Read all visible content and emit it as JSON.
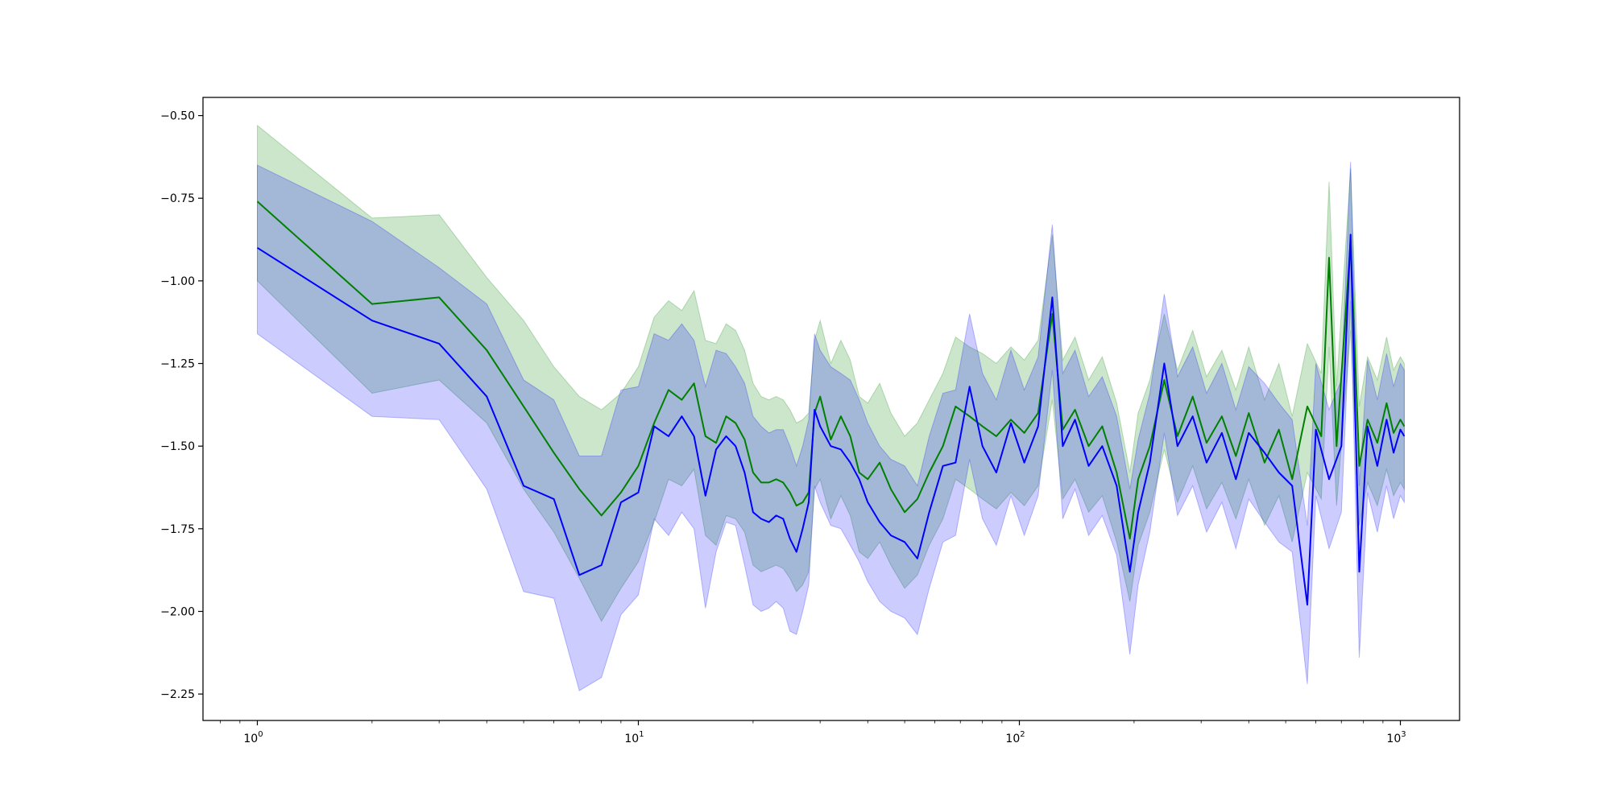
{
  "chart_data": {
    "type": "line",
    "title": "",
    "xlabel": "",
    "ylabel": "",
    "xscale": "log",
    "xlim": [
      0.72,
      1430
    ],
    "ylim": [
      -2.33,
      -0.445
    ],
    "grid": false,
    "x_ticks": [
      {
        "value": 1,
        "base": "10",
        "exp": "0"
      },
      {
        "value": 10,
        "base": "10",
        "exp": "1"
      },
      {
        "value": 100,
        "base": "10",
        "exp": "2"
      },
      {
        "value": 1000,
        "base": "10",
        "exp": "3"
      }
    ],
    "y_ticks": [
      {
        "value": -0.5,
        "label": "−0.50"
      },
      {
        "value": -0.75,
        "label": "−0.75"
      },
      {
        "value": -1.0,
        "label": "−1.00"
      },
      {
        "value": -1.25,
        "label": "−1.25"
      },
      {
        "value": -1.5,
        "label": "−1.50"
      },
      {
        "value": -1.75,
        "label": "−1.75"
      },
      {
        "value": -2.0,
        "label": "−2.00"
      },
      {
        "value": -2.25,
        "label": "−2.25"
      }
    ],
    "series": [
      {
        "color": "#008000",
        "band_color": "#008000",
        "x": [
          1,
          2,
          3,
          4,
          5,
          6,
          7,
          8,
          9,
          10,
          11,
          12,
          13,
          14,
          15,
          16,
          17,
          18,
          19,
          20,
          21,
          22,
          23,
          24,
          25,
          26,
          27,
          28,
          29,
          30,
          32,
          34,
          36,
          38,
          40,
          43,
          46,
          50,
          54,
          58,
          63,
          68,
          74,
          80,
          87,
          95,
          103,
          112,
          122,
          130,
          140,
          152,
          165,
          180,
          195,
          205,
          220,
          240,
          260,
          285,
          310,
          340,
          370,
          400,
          440,
          480,
          520,
          570,
          620,
          650,
          680,
          740,
          780,
          820,
          870,
          920,
          960,
          1000,
          1024
        ],
        "y": [
          -0.76,
          -1.07,
          -1.05,
          -1.21,
          -1.38,
          -1.52,
          -1.63,
          -1.71,
          -1.64,
          -1.56,
          -1.43,
          -1.33,
          -1.36,
          -1.31,
          -1.47,
          -1.49,
          -1.41,
          -1.43,
          -1.48,
          -1.58,
          -1.61,
          -1.61,
          -1.6,
          -1.61,
          -1.64,
          -1.68,
          -1.67,
          -1.64,
          -1.4,
          -1.35,
          -1.48,
          -1.41,
          -1.47,
          -1.58,
          -1.6,
          -1.55,
          -1.63,
          -1.7,
          -1.66,
          -1.58,
          -1.5,
          -1.38,
          -1.41,
          -1.44,
          -1.47,
          -1.42,
          -1.46,
          -1.4,
          -1.1,
          -1.45,
          -1.39,
          -1.5,
          -1.44,
          -1.58,
          -1.78,
          -1.6,
          -1.5,
          -1.3,
          -1.47,
          -1.35,
          -1.49,
          -1.41,
          -1.53,
          -1.4,
          -1.55,
          -1.45,
          -1.6,
          -1.38,
          -1.47,
          -0.93,
          -1.5,
          -0.88,
          -1.56,
          -1.42,
          -1.49,
          -1.37,
          -1.46,
          -1.42,
          -1.44
        ],
        "lower": [
          -1.0,
          -1.34,
          -1.3,
          -1.43,
          -1.63,
          -1.76,
          -1.9,
          -2.03,
          -1.93,
          -1.85,
          -1.73,
          -1.6,
          -1.62,
          -1.57,
          -1.77,
          -1.8,
          -1.71,
          -1.72,
          -1.76,
          -1.86,
          -1.88,
          -1.87,
          -1.86,
          -1.87,
          -1.9,
          -1.94,
          -1.92,
          -1.88,
          -1.63,
          -1.6,
          -1.72,
          -1.65,
          -1.71,
          -1.82,
          -1.84,
          -1.79,
          -1.86,
          -1.93,
          -1.89,
          -1.8,
          -1.72,
          -1.6,
          -1.63,
          -1.66,
          -1.69,
          -1.64,
          -1.68,
          -1.62,
          -1.36,
          -1.66,
          -1.6,
          -1.7,
          -1.65,
          -1.79,
          -1.97,
          -1.8,
          -1.7,
          -1.51,
          -1.67,
          -1.56,
          -1.69,
          -1.61,
          -1.72,
          -1.6,
          -1.74,
          -1.65,
          -1.79,
          -1.58,
          -1.66,
          -1.2,
          -1.68,
          -1.15,
          -1.74,
          -1.61,
          -1.68,
          -1.57,
          -1.65,
          -1.61,
          -1.63
        ],
        "upper": [
          -0.53,
          -0.81,
          -0.8,
          -0.99,
          -1.12,
          -1.26,
          -1.35,
          -1.39,
          -1.34,
          -1.26,
          -1.11,
          -1.06,
          -1.09,
          -1.03,
          -1.18,
          -1.19,
          -1.13,
          -1.15,
          -1.21,
          -1.31,
          -1.35,
          -1.36,
          -1.35,
          -1.36,
          -1.39,
          -1.43,
          -1.42,
          -1.4,
          -1.18,
          -1.12,
          -1.25,
          -1.18,
          -1.24,
          -1.35,
          -1.37,
          -1.31,
          -1.4,
          -1.47,
          -1.43,
          -1.36,
          -1.28,
          -1.17,
          -1.2,
          -1.22,
          -1.25,
          -1.2,
          -1.24,
          -1.18,
          -0.86,
          -1.24,
          -1.17,
          -1.3,
          -1.23,
          -1.37,
          -1.58,
          -1.4,
          -1.3,
          -1.1,
          -1.27,
          -1.15,
          -1.29,
          -1.21,
          -1.33,
          -1.2,
          -1.36,
          -1.25,
          -1.41,
          -1.19,
          -1.28,
          -0.7,
          -1.32,
          -0.66,
          -1.38,
          -1.23,
          -1.3,
          -1.17,
          -1.27,
          -1.23,
          -1.25
        ]
      },
      {
        "color": "#0000ff",
        "band_color": "#0000ff",
        "x": [
          1,
          2,
          3,
          4,
          5,
          6,
          7,
          8,
          9,
          10,
          11,
          12,
          13,
          14,
          15,
          16,
          17,
          18,
          19,
          20,
          21,
          22,
          23,
          24,
          25,
          26,
          27,
          28,
          29,
          30,
          32,
          34,
          36,
          38,
          40,
          43,
          46,
          50,
          54,
          58,
          63,
          68,
          74,
          80,
          87,
          95,
          103,
          112,
          122,
          130,
          140,
          152,
          165,
          180,
          195,
          205,
          220,
          240,
          260,
          285,
          310,
          340,
          370,
          400,
          440,
          480,
          520,
          570,
          600,
          650,
          700,
          740,
          780,
          820,
          870,
          920,
          960,
          1000,
          1024
        ],
        "y": [
          -0.9,
          -1.12,
          -1.19,
          -1.35,
          -1.62,
          -1.66,
          -1.89,
          -1.86,
          -1.67,
          -1.64,
          -1.44,
          -1.47,
          -1.41,
          -1.47,
          -1.65,
          -1.51,
          -1.47,
          -1.5,
          -1.58,
          -1.7,
          -1.72,
          -1.73,
          -1.71,
          -1.72,
          -1.78,
          -1.82,
          -1.75,
          -1.67,
          -1.39,
          -1.44,
          -1.5,
          -1.51,
          -1.55,
          -1.6,
          -1.67,
          -1.73,
          -1.77,
          -1.79,
          -1.84,
          -1.7,
          -1.56,
          -1.55,
          -1.32,
          -1.5,
          -1.58,
          -1.43,
          -1.55,
          -1.44,
          -1.05,
          -1.5,
          -1.42,
          -1.56,
          -1.5,
          -1.62,
          -1.88,
          -1.7,
          -1.55,
          -1.25,
          -1.5,
          -1.41,
          -1.55,
          -1.46,
          -1.6,
          -1.46,
          -1.52,
          -1.58,
          -1.62,
          -1.98,
          -1.45,
          -1.6,
          -1.5,
          -0.86,
          -1.88,
          -1.44,
          -1.56,
          -1.42,
          -1.52,
          -1.45,
          -1.47
        ],
        "lower": [
          -1.16,
          -1.41,
          -1.42,
          -1.63,
          -1.94,
          -1.96,
          -2.24,
          -2.2,
          -2.01,
          -1.95,
          -1.72,
          -1.77,
          -1.7,
          -1.75,
          -1.99,
          -1.82,
          -1.73,
          -1.74,
          -1.86,
          -1.98,
          -2.0,
          -1.99,
          -1.97,
          -1.99,
          -2.06,
          -2.07,
          -2.0,
          -1.92,
          -1.62,
          -1.67,
          -1.74,
          -1.75,
          -1.8,
          -1.85,
          -1.91,
          -1.97,
          -2.0,
          -2.02,
          -2.07,
          -1.93,
          -1.79,
          -1.77,
          -1.54,
          -1.72,
          -1.8,
          -1.65,
          -1.77,
          -1.65,
          -1.27,
          -1.72,
          -1.63,
          -1.77,
          -1.71,
          -1.83,
          -2.13,
          -1.92,
          -1.76,
          -1.46,
          -1.71,
          -1.62,
          -1.76,
          -1.67,
          -1.81,
          -1.66,
          -1.73,
          -1.79,
          -1.82,
          -2.22,
          -1.65,
          -1.81,
          -1.7,
          -1.06,
          -2.14,
          -1.64,
          -1.76,
          -1.62,
          -1.72,
          -1.65,
          -1.67
        ],
        "upper": [
          -0.65,
          -0.82,
          -0.96,
          -1.07,
          -1.3,
          -1.36,
          -1.53,
          -1.53,
          -1.33,
          -1.32,
          -1.16,
          -1.18,
          -1.13,
          -1.18,
          -1.32,
          -1.21,
          -1.22,
          -1.26,
          -1.31,
          -1.41,
          -1.44,
          -1.46,
          -1.45,
          -1.45,
          -1.5,
          -1.56,
          -1.5,
          -1.42,
          -1.16,
          -1.21,
          -1.26,
          -1.28,
          -1.3,
          -1.36,
          -1.43,
          -1.5,
          -1.54,
          -1.56,
          -1.62,
          -1.47,
          -1.34,
          -1.33,
          -1.1,
          -1.28,
          -1.36,
          -1.21,
          -1.33,
          -1.23,
          -0.83,
          -1.28,
          -1.21,
          -1.35,
          -1.29,
          -1.41,
          -1.63,
          -1.48,
          -1.34,
          -1.04,
          -1.29,
          -1.2,
          -1.34,
          -1.25,
          -1.39,
          -1.26,
          -1.31,
          -1.37,
          -1.42,
          -1.74,
          -1.25,
          -1.39,
          -1.3,
          -0.64,
          -1.62,
          -1.24,
          -1.36,
          -1.22,
          -1.32,
          -1.25,
          -1.27
        ]
      }
    ]
  }
}
